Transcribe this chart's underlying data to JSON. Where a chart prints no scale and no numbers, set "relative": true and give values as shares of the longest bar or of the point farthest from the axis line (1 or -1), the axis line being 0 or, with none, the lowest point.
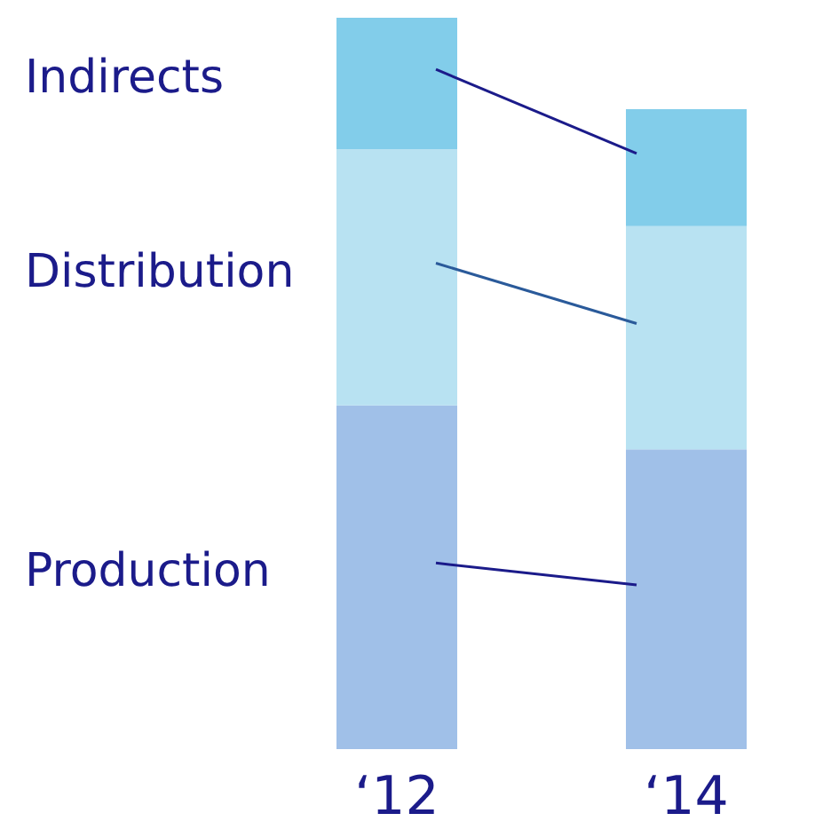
{
  "chart_data": {
    "type": "bar",
    "stacked": true,
    "relative": true,
    "legend": false,
    "categories": [
      "‘12",
      "‘14"
    ],
    "series": [
      {
        "name": "Production",
        "color": "#a0c0e8",
        "values": [
          0.47,
          0.41
        ]
      },
      {
        "name": "Distribution",
        "color": "#b8e2f2",
        "values": [
          0.35,
          0.305
        ]
      },
      {
        "name": "Indirects",
        "color": "#82cdea",
        "values": [
          0.18,
          0.16
        ]
      }
    ]
  }
}
